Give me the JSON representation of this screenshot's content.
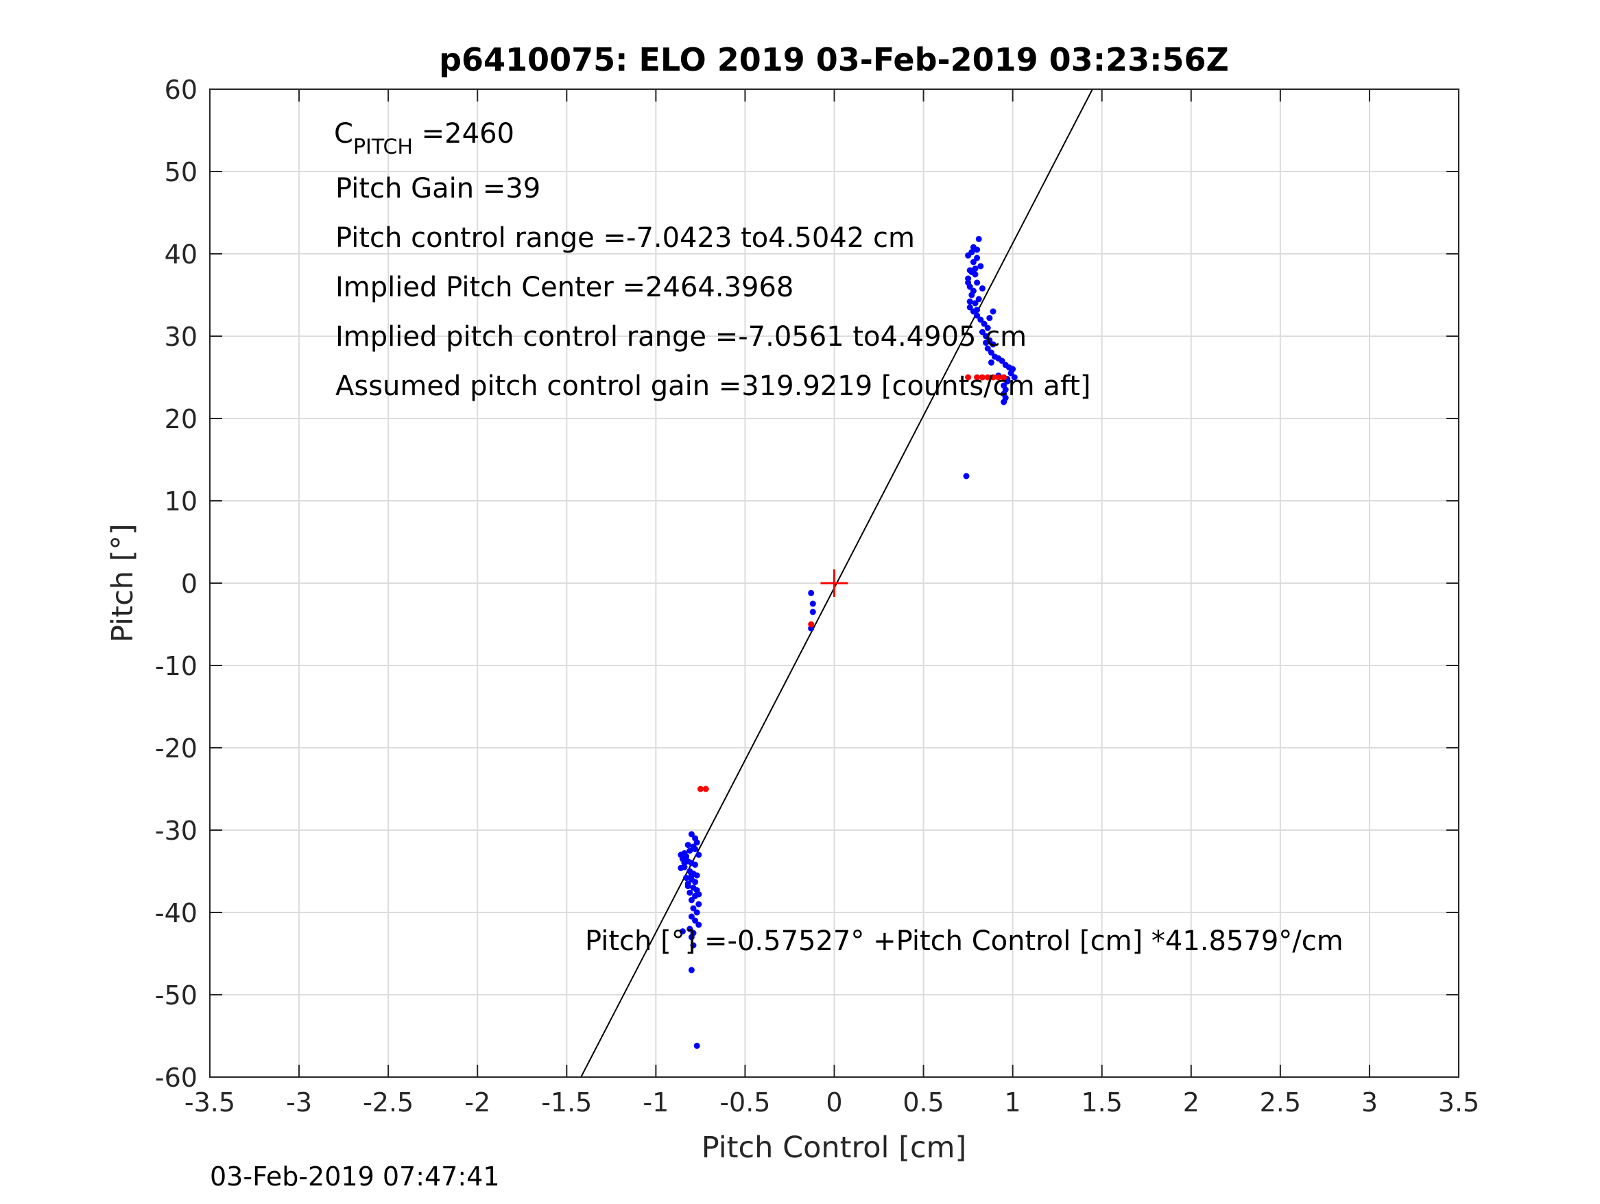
{
  "chart_data": {
    "type": "scatter",
    "title": "p6410075: ELO 2019 03-Feb-2019 03:23:56Z",
    "xlabel": "Pitch Control [cm]",
    "ylabel": "Pitch [°]",
    "xlim": [
      -3.5,
      3.5
    ],
    "ylim": [
      -60,
      60
    ],
    "xticks": [
      "-3.5",
      "-3",
      "-2.5",
      "-2",
      "-1.5",
      "-1",
      "-0.5",
      "0",
      "0.5",
      "1",
      "1.5",
      "2",
      "2.5",
      "3",
      "3.5"
    ],
    "yticks": [
      "60",
      "50",
      "40",
      "30",
      "20",
      "10",
      "0",
      "-10",
      "-20",
      "-30",
      "-40",
      "-50",
      "-60"
    ],
    "grid": true,
    "annotations": {
      "c_pitch_base": "C",
      "c_pitch_sub": "PITCH",
      "c_pitch_value": " =2460",
      "pitch_gain": "Pitch Gain =39",
      "pitch_control_range": "Pitch control range =-7.0423 to4.5042 cm",
      "implied_center": "Implied Pitch Center =2464.3968",
      "implied_range": "Implied pitch control range =-7.0561 to4.4905 cm",
      "assumed_gain": "Assumed pitch control gain =319.9219 [counts/cm aft]",
      "fit_equation": "Pitch [°] =-0.57527° +Pitch Control [cm] *41.8579°/cm"
    },
    "fit_line": {
      "intercept": -0.57527,
      "slope": 41.8579
    },
    "center_marker": {
      "x": 0,
      "y": 0,
      "color": "#ff0000"
    },
    "series": [
      {
        "color": "#0000ff",
        "points": [
          [
            -0.8,
            -30.5
          ],
          [
            -0.78,
            -31.0
          ],
          [
            -0.77,
            -31.5
          ],
          [
            -0.79,
            -32.0
          ],
          [
            -0.81,
            -32.5
          ],
          [
            -0.84,
            -32.8
          ],
          [
            -0.86,
            -33.0
          ],
          [
            -0.83,
            -33.2
          ],
          [
            -0.85,
            -33.5
          ],
          [
            -0.82,
            -33.8
          ],
          [
            -0.8,
            -34.0
          ],
          [
            -0.78,
            -34.2
          ],
          [
            -0.84,
            -34.5
          ],
          [
            -0.86,
            -34.6
          ],
          [
            -0.81,
            -35.0
          ],
          [
            -0.79,
            -35.3
          ],
          [
            -0.77,
            -35.5
          ],
          [
            -0.83,
            -35.8
          ],
          [
            -0.8,
            -36.0
          ],
          [
            -0.78,
            -36.3
          ],
          [
            -0.82,
            -36.5
          ],
          [
            -0.79,
            -37.0
          ],
          [
            -0.77,
            -37.3
          ],
          [
            -0.81,
            -37.6
          ],
          [
            -0.78,
            -38.0
          ],
          [
            -0.8,
            -38.5
          ],
          [
            -0.76,
            -39.0
          ],
          [
            -0.79,
            -39.5
          ],
          [
            -0.77,
            -40.0
          ],
          [
            -0.8,
            -40.5
          ],
          [
            -0.78,
            -41.0
          ],
          [
            -0.76,
            -41.5
          ],
          [
            -0.81,
            -42.0
          ],
          [
            -0.79,
            -42.5
          ],
          [
            -0.85,
            -42.3
          ],
          [
            -0.8,
            -43.0
          ],
          [
            -0.79,
            -44.0
          ],
          [
            -0.8,
            -47.0
          ],
          [
            -0.77,
            -56.2
          ],
          [
            -0.82,
            -31.8
          ],
          [
            -0.76,
            -33.0
          ],
          [
            -0.84,
            -34.0
          ],
          [
            -0.78,
            -32.3
          ],
          [
            -0.8,
            -35.5
          ],
          [
            -0.82,
            -36.8
          ],
          [
            -0.76,
            -37.8
          ],
          [
            -0.13,
            -1.2
          ],
          [
            -0.12,
            -2.5
          ],
          [
            -0.12,
            -3.5
          ],
          [
            -0.13,
            -5.5
          ],
          [
            0.74,
            13.0
          ],
          [
            0.75,
            37.0
          ],
          [
            0.76,
            38.0
          ],
          [
            0.78,
            39.0
          ],
          [
            0.8,
            40.5
          ],
          [
            0.81,
            41.8
          ],
          [
            0.77,
            40.2
          ],
          [
            0.75,
            39.8
          ],
          [
            0.79,
            37.5
          ],
          [
            0.8,
            36.5
          ],
          [
            0.76,
            36.0
          ],
          [
            0.78,
            35.5
          ],
          [
            0.77,
            35.0
          ],
          [
            0.81,
            34.5
          ],
          [
            0.79,
            34.0
          ],
          [
            0.76,
            33.5
          ],
          [
            0.78,
            33.0
          ],
          [
            0.8,
            32.5
          ],
          [
            0.82,
            32.0
          ],
          [
            0.84,
            31.5
          ],
          [
            0.86,
            31.0
          ],
          [
            0.83,
            30.5
          ],
          [
            0.85,
            30.0
          ],
          [
            0.87,
            29.5
          ],
          [
            0.89,
            29.0
          ],
          [
            0.86,
            28.5
          ],
          [
            0.88,
            28.0
          ],
          [
            0.9,
            27.5
          ],
          [
            0.92,
            27.3
          ],
          [
            0.94,
            27.0
          ],
          [
            0.96,
            26.5
          ],
          [
            0.98,
            26.2
          ],
          [
            1.0,
            26.0
          ],
          [
            0.99,
            25.5
          ],
          [
            1.01,
            25.0
          ],
          [
            0.97,
            24.5
          ],
          [
            0.95,
            24.0
          ],
          [
            0.96,
            23.5
          ],
          [
            0.95,
            23.0
          ],
          [
            0.96,
            22.5
          ],
          [
            0.95,
            22.0
          ],
          [
            0.97,
            24.8
          ],
          [
            0.92,
            25.2
          ],
          [
            0.89,
            33.0
          ],
          [
            0.87,
            32.2
          ],
          [
            0.83,
            35.8
          ],
          [
            0.82,
            38.5
          ],
          [
            0.79,
            38.2
          ],
          [
            0.77,
            37.8
          ],
          [
            0.75,
            36.5
          ],
          [
            0.8,
            39.5
          ],
          [
            0.78,
            40.8
          ],
          [
            0.76,
            34.2
          ],
          [
            0.8,
            33.2
          ],
          [
            0.85,
            29.2
          ],
          [
            0.88,
            26.8
          ]
        ]
      },
      {
        "color": "#ff0000",
        "points": [
          [
            -0.75,
            -25.0
          ],
          [
            -0.72,
            -25.0
          ],
          [
            -0.13,
            -5.0
          ],
          [
            0.75,
            25.0
          ],
          [
            0.8,
            25.0
          ],
          [
            0.83,
            25.0
          ],
          [
            0.86,
            25.0
          ],
          [
            0.89,
            25.0
          ],
          [
            0.92,
            25.0
          ],
          [
            0.95,
            25.0
          ]
        ]
      }
    ]
  },
  "footer": {
    "timestamp": "03-Feb-2019 07:47:41"
  }
}
